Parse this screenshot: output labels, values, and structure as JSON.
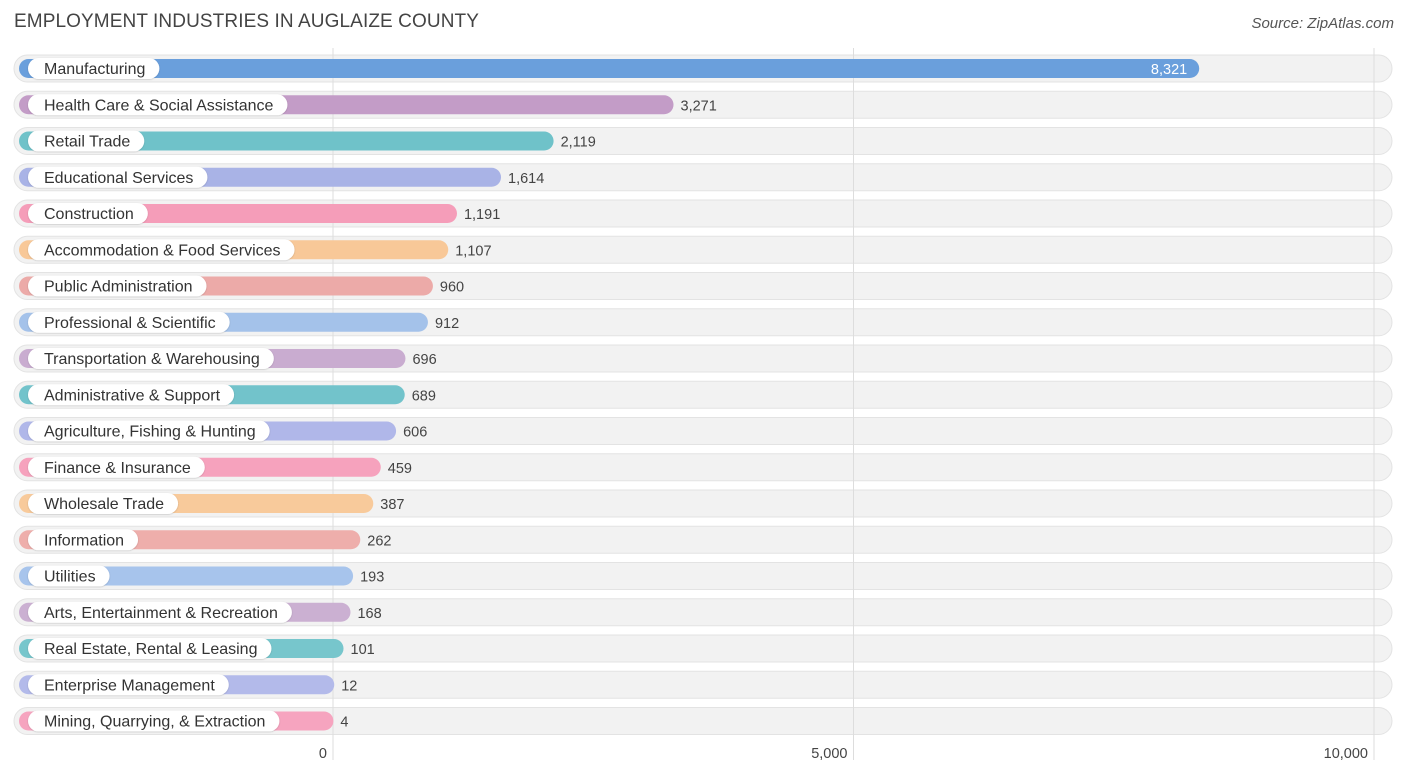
{
  "chart_data": {
    "type": "bar",
    "orientation": "horizontal",
    "title": "EMPLOYMENT INDUSTRIES IN AUGLAIZE COUNTY",
    "source": "Source: ZipAtlas.com",
    "xlabel": "",
    "ylabel": "",
    "xlim": [
      0,
      10000
    ],
    "ticks": [
      0,
      5000,
      10000
    ],
    "tick_labels": [
      "0",
      "5,000",
      "10,000"
    ],
    "grid": true,
    "categories": [
      "Manufacturing",
      "Health Care & Social Assistance",
      "Retail Trade",
      "Educational Services",
      "Construction",
      "Accommodation & Food Services",
      "Public Administration",
      "Professional & Scientific",
      "Transportation & Warehousing",
      "Administrative & Support",
      "Agriculture, Fishing & Hunting",
      "Finance & Insurance",
      "Wholesale Trade",
      "Information",
      "Utilities",
      "Arts, Entertainment & Recreation",
      "Real Estate, Rental & Leasing",
      "Enterprise Management",
      "Mining, Quarrying, & Extraction"
    ],
    "values": [
      8321,
      3271,
      2119,
      1614,
      1191,
      1107,
      960,
      912,
      696,
      689,
      606,
      459,
      387,
      262,
      193,
      168,
      101,
      12,
      4
    ],
    "value_labels": [
      "8,321",
      "3,271",
      "2,119",
      "1,614",
      "1,191",
      "1,107",
      "960",
      "912",
      "696",
      "689",
      "606",
      "459",
      "387",
      "262",
      "193",
      "168",
      "101",
      "12",
      "4"
    ],
    "colors": [
      "#6a9fdc",
      "#c39cc7",
      "#6fc2c9",
      "#a9b3e6",
      "#f59db9",
      "#f8c898",
      "#ecaaa8",
      "#a4c2ea",
      "#c9acd0",
      "#72c3cb",
      "#b0b7e9",
      "#f6a2bd",
      "#f8ca9b",
      "#eeaeab",
      "#a7c4ec",
      "#cbb0d2",
      "#77c6cc",
      "#b3baea",
      "#f6a4bf"
    ]
  }
}
